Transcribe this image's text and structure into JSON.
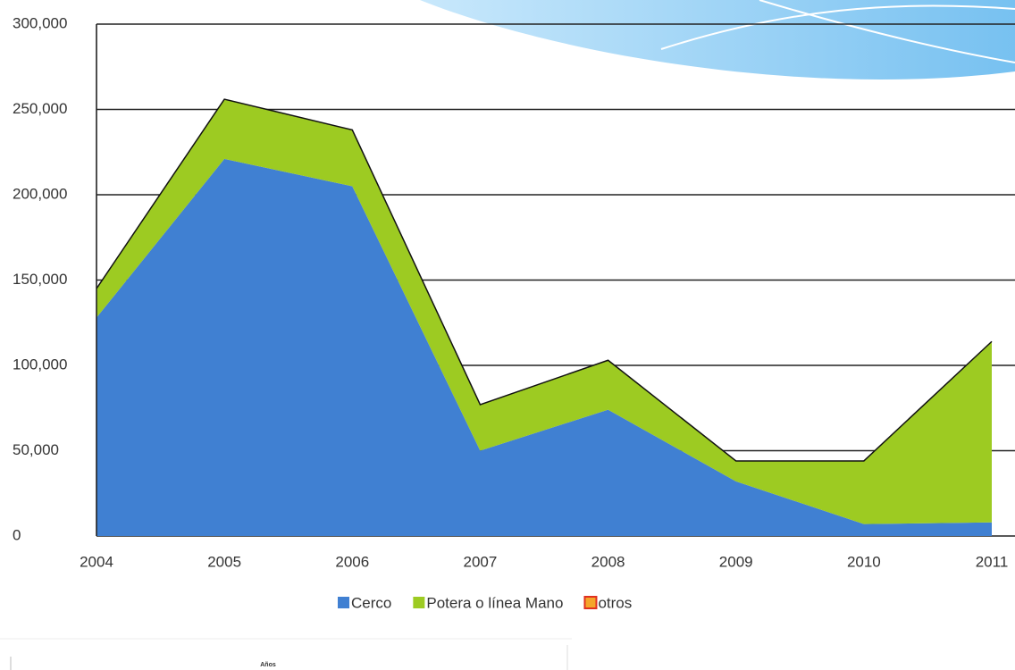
{
  "chart_data": {
    "type": "stacked_area",
    "x": [
      2004,
      2005,
      2006,
      2007,
      2008,
      2009,
      2010,
      2011
    ],
    "xlim": [
      2004,
      2011
    ],
    "xticks": [
      2004,
      2005,
      2006,
      2007,
      2008,
      2009,
      2010,
      2011
    ],
    "ylim": [
      0,
      300000
    ],
    "yticks": [
      0,
      {
        "value": 50000,
        "label": "50,000"
      },
      {
        "value": 100000,
        "label": "100,000"
      },
      {
        "value": 150000,
        "label": "150,000"
      },
      {
        "value": 200000,
        "label": "200,000"
      },
      {
        "value": 250000,
        "label": "250,000"
      },
      {
        "value": 300000,
        "label": "300,000"
      }
    ],
    "grid": true,
    "legend": "bottom",
    "series": [
      {
        "name": "Cerco",
        "color": "#4080d2",
        "values": [
          128000,
          221000,
          205000,
          50000,
          74000,
          32000,
          7000,
          8000
        ]
      },
      {
        "name": "Potera o línea Mano",
        "color": "#9dcb22",
        "values": [
          17000,
          35000,
          33000,
          27000,
          29000,
          12000,
          37000,
          106000
        ]
      },
      {
        "name": "otros",
        "color": "#f4a52a",
        "values": [
          0,
          0,
          0,
          0,
          0,
          0,
          0,
          0
        ]
      }
    ],
    "footer_label": "Años"
  }
}
